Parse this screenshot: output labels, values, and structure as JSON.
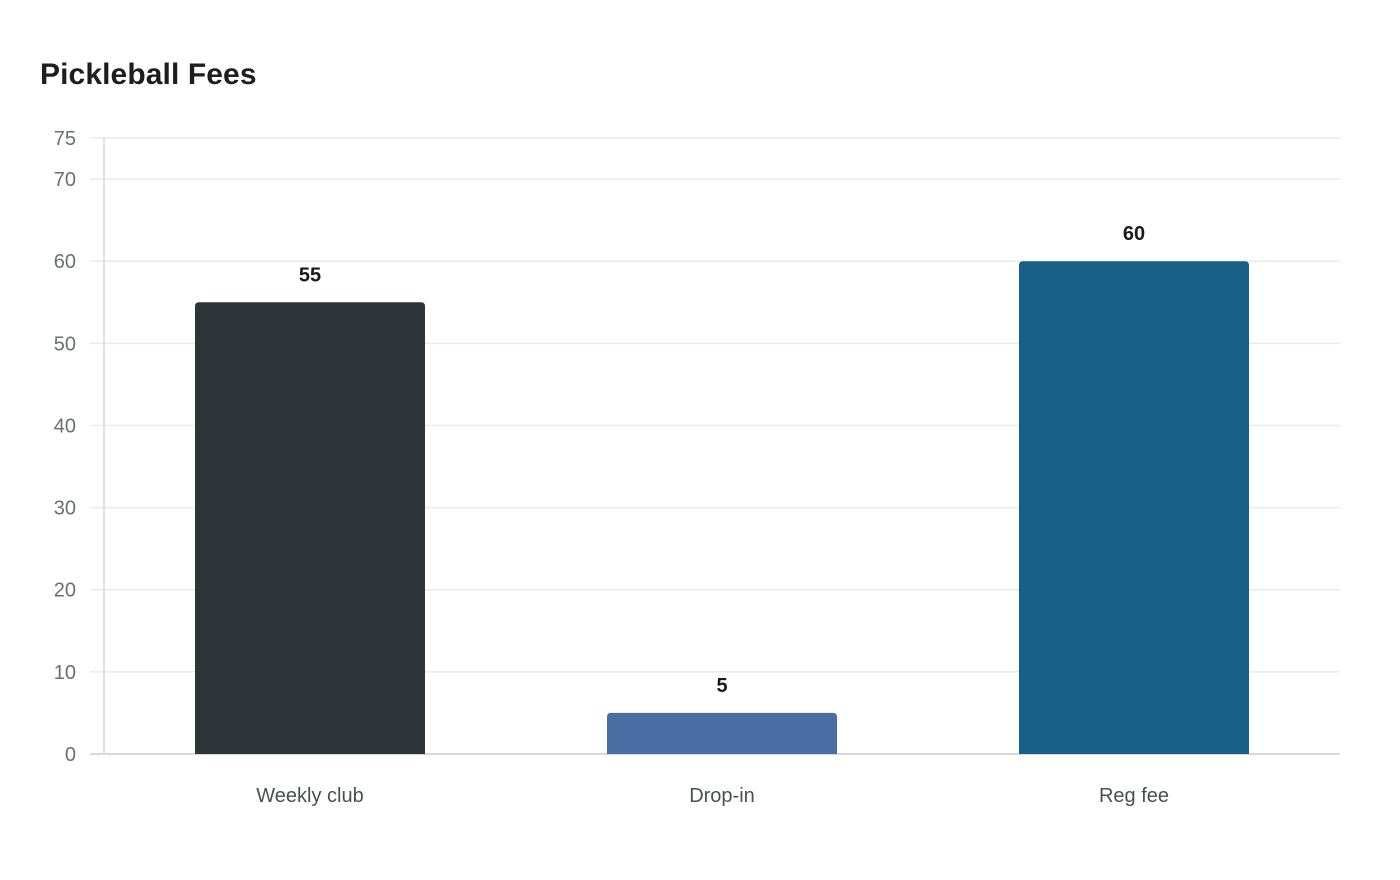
{
  "chart_data": {
    "type": "bar",
    "title": "Pickleball Fees",
    "categories": [
      "Weekly club",
      "Drop-in",
      "Reg fee"
    ],
    "values": [
      55,
      5,
      60
    ],
    "colors": [
      "#2e3538",
      "#4a6da3",
      "#176088"
    ],
    "ylim": [
      0,
      75
    ],
    "yticks": [
      0,
      10,
      20,
      30,
      40,
      50,
      60,
      70,
      75
    ],
    "grid": true,
    "data_labels": true,
    "xlabel": "",
    "ylabel": ""
  }
}
